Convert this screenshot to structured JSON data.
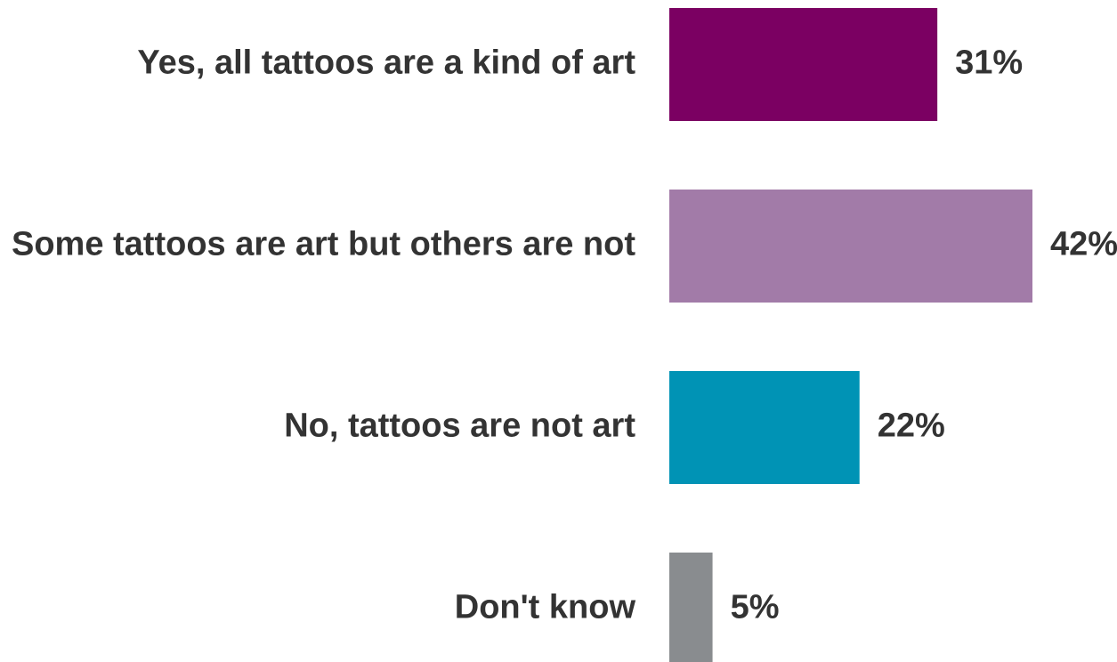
{
  "chart_data": {
    "type": "bar",
    "orientation": "horizontal",
    "categories": [
      "Yes, all tattoos are a kind of art",
      "Some tattoos are art but others are not",
      "No, tattoos are not art",
      "Don't know"
    ],
    "values": [
      31,
      42,
      22,
      5
    ],
    "value_labels": [
      "31%",
      "42%",
      "22%",
      "5%"
    ],
    "unit": "%",
    "colors": [
      "#7b0062",
      "#a27ba8",
      "#0093b5",
      "#898c8f"
    ],
    "grid": false,
    "legend": "none",
    "xlim": [
      0,
      42
    ]
  }
}
